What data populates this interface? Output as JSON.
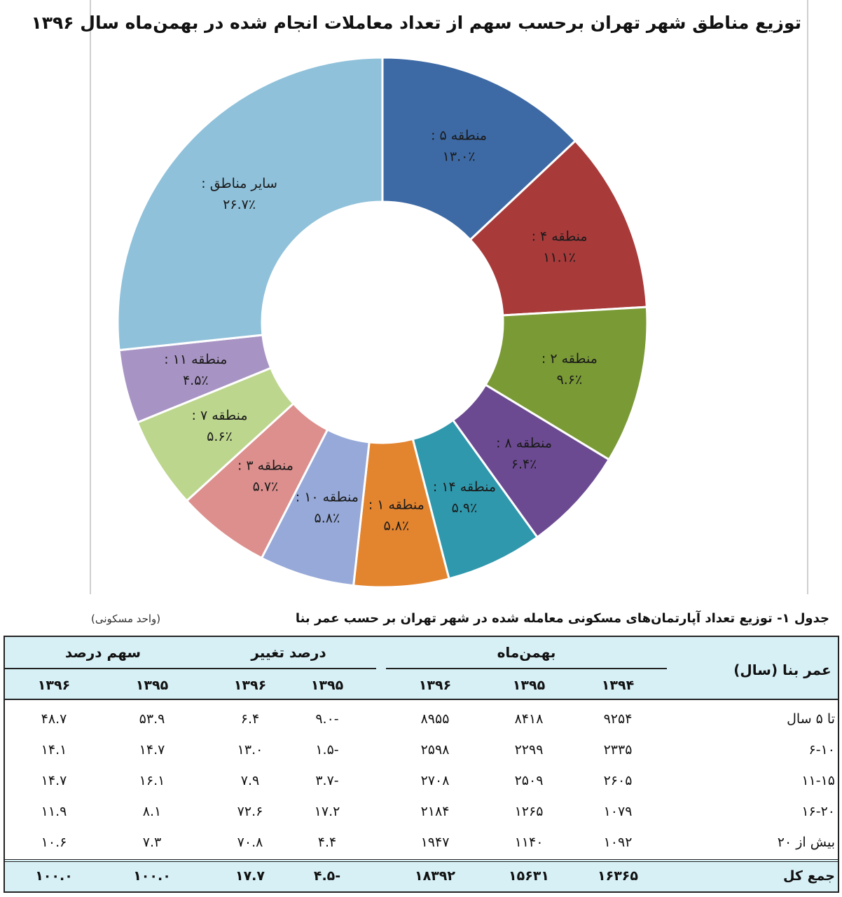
{
  "chart_data": {
    "type": "pie",
    "title": "توزیع مناطق شهر تهران برحسب سهم از تعداد معاملات انجام شده در بهمن‌ماه سال ۱۳۹۶",
    "slices": [
      {
        "name": "منطقه ۵",
        "value": 13.0,
        "label": "۱۳.۰٪",
        "color": "#3d6aa5"
      },
      {
        "name": "منطقه ۴",
        "value": 11.1,
        "label": "۱۱.۱٪",
        "color": "#a93a3a"
      },
      {
        "name": "منطقه ۲",
        "value": 9.6,
        "label": "۹.۶٪",
        "color": "#7a9a36"
      },
      {
        "name": "منطقه ۸",
        "value": 6.4,
        "label": "۶.۴٪",
        "color": "#6c4a92"
      },
      {
        "name": "منطقه ۱۴",
        "value": 5.9,
        "label": "۵.۹٪",
        "color": "#2f98ac"
      },
      {
        "name": "منطقه ۱",
        "value": 5.8,
        "label": "۵.۸٪",
        "color": "#e3842f"
      },
      {
        "name": "منطقه ۱۰",
        "value": 5.8,
        "label": "۵.۸٪",
        "color": "#96a9d8"
      },
      {
        "name": "منطقه ۳",
        "value": 5.7,
        "label": "۵.۷٪",
        "color": "#dc8f8d"
      },
      {
        "name": "منطقه ۷",
        "value": 5.6,
        "label": "۵.۶٪",
        "color": "#bcd68d"
      },
      {
        "name": "منطقه ۱۱",
        "value": 4.5,
        "label": "۴.۵٪",
        "color": "#a894c4"
      },
      {
        "name": "سایر مناطق",
        "value": 26.7,
        "label": "۲۶.۷٪",
        "color": "#8fc1da"
      }
    ]
  },
  "table": {
    "caption": "جدول ۱- توزیع تعداد آپارتمان‌های مسکونی معامله شده در شهر تهران بر حسب عمر بنا",
    "unit": "(واحد مسکونی)",
    "row_header": "عمر بنا (سال)",
    "groups": [
      {
        "label": "بهمن‌ماه",
        "years": [
          "۱۳۹۴",
          "۱۳۹۵",
          "۱۳۹۶"
        ]
      },
      {
        "label": "درصد تغییر",
        "years": [
          "۱۳۹۵",
          "۱۳۹۶"
        ]
      },
      {
        "label": "سهم درصد",
        "years": [
          "۱۳۹۵",
          "۱۳۹۶"
        ]
      }
    ],
    "rows": [
      {
        "label": "تا ۵ سال",
        "values": [
          "۹۲۵۴",
          "۸۴۱۸",
          "۸۹۵۵",
          "-۹.۰",
          "۶.۴",
          "۵۳.۹",
          "۴۸.۷"
        ]
      },
      {
        "label": "۶-۱۰",
        "values": [
          "۲۳۳۵",
          "۲۲۹۹",
          "۲۵۹۸",
          "-۱.۵",
          "۱۳.۰",
          "۱۴.۷",
          "۱۴.۱"
        ]
      },
      {
        "label": "۱۱-۱۵",
        "values": [
          "۲۶۰۵",
          "۲۵۰۹",
          "۲۷۰۸",
          "-۳.۷",
          "۷.۹",
          "۱۶.۱",
          "۱۴.۷"
        ]
      },
      {
        "label": "۱۶-۲۰",
        "values": [
          "۱۰۷۹",
          "۱۲۶۵",
          "۲۱۸۴",
          "۱۷.۲",
          "۷۲.۶",
          "۸.۱",
          "۱۱.۹"
        ]
      },
      {
        "label": "بیش از ۲۰",
        "values": [
          "۱۰۹۲",
          "۱۱۴۰",
          "۱۹۴۷",
          "۴.۴",
          "۷۰.۸",
          "۷.۳",
          "۱۰.۶"
        ]
      }
    ],
    "total": {
      "label": "جمع کل",
      "values": [
        "۱۶۳۶۵",
        "۱۵۶۳۱",
        "۱۸۳۹۲",
        "-۴.۵",
        "۱۷.۷",
        "۱۰۰.۰",
        "۱۰۰.۰"
      ]
    }
  }
}
